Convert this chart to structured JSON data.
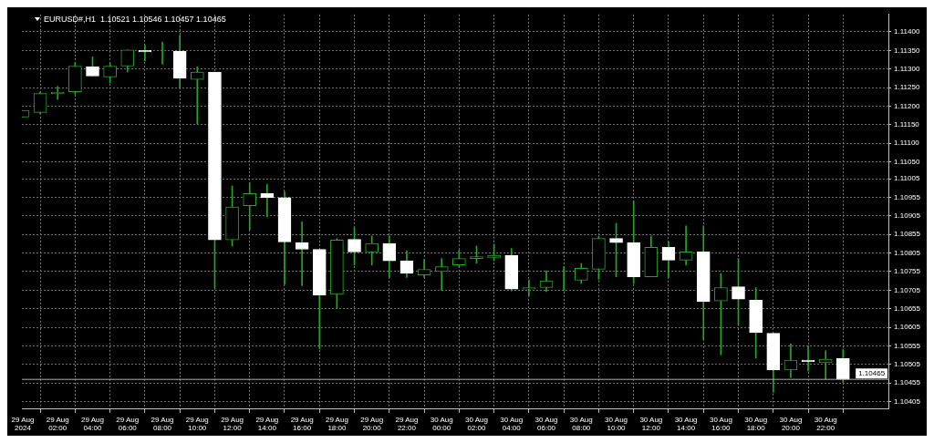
{
  "chart_data": {
    "type": "candlestick",
    "title": "EURUSD#,H1  1.10521 1.10546 1.10457 1.10465",
    "x": [
      "2024-08-29T00:00",
      "2024-08-29T01:00",
      "2024-08-29T02:00",
      "2024-08-29T03:00",
      "2024-08-29T04:00",
      "2024-08-29T05:00",
      "2024-08-29T06:00",
      "2024-08-29T07:00",
      "2024-08-29T08:00",
      "2024-08-29T09:00",
      "2024-08-29T10:00",
      "2024-08-29T11:00",
      "2024-08-29T12:00",
      "2024-08-29T13:00",
      "2024-08-29T14:00",
      "2024-08-29T15:00",
      "2024-08-29T16:00",
      "2024-08-29T17:00",
      "2024-08-29T18:00",
      "2024-08-29T19:00",
      "2024-08-29T20:00",
      "2024-08-29T21:00",
      "2024-08-29T22:00",
      "2024-08-29T23:00",
      "2024-08-30T00:00",
      "2024-08-30T01:00",
      "2024-08-30T02:00",
      "2024-08-30T03:00",
      "2024-08-30T04:00",
      "2024-08-30T05:00",
      "2024-08-30T06:00",
      "2024-08-30T07:00",
      "2024-08-30T08:00",
      "2024-08-30T09:00",
      "2024-08-30T10:00",
      "2024-08-30T11:00",
      "2024-08-30T12:00",
      "2024-08-30T13:00",
      "2024-08-30T14:00",
      "2024-08-30T15:00",
      "2024-08-30T16:00",
      "2024-08-30T17:00",
      "2024-08-30T18:00",
      "2024-08-30T19:00",
      "2024-08-30T20:00",
      "2024-08-30T21:00",
      "2024-08-30T22:00",
      "2024-08-30T23:00"
    ],
    "ohlc": [
      [
        1.11171,
        1.11189,
        1.11171,
        1.11189
      ],
      [
        1.11183,
        1.11238,
        1.1118,
        1.11234
      ],
      [
        1.11234,
        1.11254,
        1.11218,
        1.11237
      ],
      [
        1.11239,
        1.11317,
        1.11232,
        1.11308
      ],
      [
        1.11306,
        1.11333,
        1.11281,
        1.11281
      ],
      [
        1.11279,
        1.11315,
        1.11263,
        1.11308
      ],
      [
        1.11308,
        1.11351,
        1.11292,
        1.11351
      ],
      [
        1.1135,
        1.11364,
        1.11322,
        1.11346
      ],
      [
        1.11348,
        1.11373,
        1.11313,
        1.11348
      ],
      [
        1.11348,
        1.11391,
        1.11248,
        1.11275
      ],
      [
        1.11272,
        1.11306,
        1.11153,
        1.11292
      ],
      [
        1.11292,
        1.11292,
        1.1071,
        1.1084
      ],
      [
        1.1084,
        1.10985,
        1.10824,
        1.10929
      ],
      [
        1.10932,
        1.10994,
        1.10867,
        1.10965
      ],
      [
        1.10965,
        1.1099,
        1.10903,
        1.10954
      ],
      [
        1.10954,
        1.1097,
        1.10721,
        1.10835
      ],
      [
        1.10833,
        1.10889,
        1.10717,
        1.10815
      ],
      [
        1.10815,
        1.10815,
        1.10548,
        1.10692
      ],
      [
        1.10694,
        1.10844,
        1.10656,
        1.1084
      ],
      [
        1.10842,
        1.10873,
        1.10773,
        1.10808
      ],
      [
        1.10808,
        1.10851,
        1.10773,
        1.10831
      ],
      [
        1.10831,
        1.10851,
        1.10739,
        1.10784
      ],
      [
        1.10784,
        1.10811,
        1.10739,
        1.1075
      ],
      [
        1.10746,
        1.10788,
        1.10739,
        1.10761
      ],
      [
        1.10755,
        1.1079,
        1.10705,
        1.10768
      ],
      [
        1.10773,
        1.10813,
        1.10766,
        1.1079
      ],
      [
        1.1079,
        1.10824,
        1.10777,
        1.10795
      ],
      [
        1.10793,
        1.10829,
        1.10784,
        1.10799
      ],
      [
        1.10799,
        1.10817,
        1.10703,
        1.10708
      ],
      [
        1.10708,
        1.10732,
        1.1069,
        1.10712
      ],
      [
        1.10712,
        1.10757,
        1.10701,
        1.1073
      ],
      [
        1.10732,
        1.10768,
        1.10705,
        1.10732
      ],
      [
        1.10732,
        1.10777,
        1.10723,
        1.10764
      ],
      [
        1.10761,
        1.10851,
        1.10734,
        1.10844
      ],
      [
        1.10844,
        1.10885,
        1.10741,
        1.10833
      ],
      [
        1.10833,
        1.10945,
        1.10723,
        1.10741
      ],
      [
        1.10741,
        1.10851,
        1.10741,
        1.1082
      ],
      [
        1.1082,
        1.10835,
        1.10739,
        1.10786
      ],
      [
        1.10786,
        1.10878,
        1.10773,
        1.10808
      ],
      [
        1.10808,
        1.10878,
        1.10571,
        1.10674
      ],
      [
        1.10676,
        1.1075,
        1.10531,
        1.10712
      ],
      [
        1.10714,
        1.1079,
        1.10611,
        1.10681
      ],
      [
        1.10678,
        1.10712,
        1.10522,
        1.10591
      ],
      [
        1.10589,
        1.10589,
        1.1043,
        1.1049
      ],
      [
        1.1049,
        1.1056,
        1.1047,
        1.10517
      ],
      [
        1.10517,
        1.10555,
        1.10488,
        1.10513
      ],
      [
        1.1051,
        1.10542,
        1.10466,
        1.10519
      ],
      [
        1.10521,
        1.10546,
        1.10457,
        1.10465
      ]
    ],
    "color": "#22a822",
    "colors": [
      "#22a822",
      "#22a822",
      "#22a822",
      "#22a822",
      "#ffffff",
      "#22a822",
      "#22a822",
      "#ffffff",
      "#22a822",
      "#ffffff",
      "#22a822",
      "#ffffff",
      "#22a822",
      "#22a822",
      "#ffffff",
      "#ffffff",
      "#ffffff",
      "#ffffff",
      "#22a822",
      "#ffffff",
      "#22a822",
      "#ffffff",
      "#ffffff",
      "#22a822",
      "#22a822",
      "#22a822",
      "#22a822",
      "#22a822",
      "#ffffff",
      "#22a822",
      "#22a822",
      "#22a822",
      "#22a822",
      "#22a822",
      "#ffffff",
      "#ffffff",
      "#22a822",
      "#ffffff",
      "#22a822",
      "#ffffff",
      "#22a822",
      "#ffffff",
      "#ffffff",
      "#ffffff",
      "#22a822",
      "#ffffff",
      "#22a822",
      "#ffffff"
    ],
    "xlim": [
      "2024-08-28T23:57",
      "2024-08-31T01:36"
    ],
    "xticks": [
      {
        "value": "2024-08-29T00:00",
        "label": "29 Aug 2024"
      },
      {
        "value": "2024-08-29T02:00",
        "label": "29 Aug 02:00"
      },
      {
        "value": "2024-08-29T04:00",
        "label": "29 Aug 04:00"
      },
      {
        "value": "2024-08-29T06:00",
        "label": "29 Aug 06:00"
      },
      {
        "value": "2024-08-29T08:00",
        "label": "29 Aug 08:00"
      },
      {
        "value": "2024-08-29T10:00",
        "label": "29 Aug 10:00"
      },
      {
        "value": "2024-08-29T12:00",
        "label": "29 Aug 12:00"
      },
      {
        "value": "2024-08-29T14:00",
        "label": "29 Aug 14:00"
      },
      {
        "value": "2024-08-29T16:00",
        "label": "29 Aug 16:00"
      },
      {
        "value": "2024-08-29T18:00",
        "label": "29 Aug 18:00"
      },
      {
        "value": "2024-08-29T20:00",
        "label": "29 Aug 20:00"
      },
      {
        "value": "2024-08-29T22:00",
        "label": "29 Aug 22:00"
      },
      {
        "value": "2024-08-30T00:00",
        "label": "30 Aug 00:00"
      },
      {
        "value": "2024-08-30T02:00",
        "label": "30 Aug 02:00"
      },
      {
        "value": "2024-08-30T04:00",
        "label": "30 Aug 04:00"
      },
      {
        "value": "2024-08-30T06:00",
        "label": "30 Aug 06:00"
      },
      {
        "value": "2024-08-30T08:00",
        "label": "30 Aug 08:00"
      },
      {
        "value": "2024-08-30T10:00",
        "label": "30 Aug 10:00"
      },
      {
        "value": "2024-08-30T12:00",
        "label": "30 Aug 12:00"
      },
      {
        "value": "2024-08-30T14:00",
        "label": "30 Aug 14:00"
      },
      {
        "value": "2024-08-30T16:00",
        "label": "30 Aug 16:00"
      },
      {
        "value": "2024-08-30T18:00",
        "label": "30 Aug 18:00"
      },
      {
        "value": "2024-08-30T20:00",
        "label": "30 Aug 20:00"
      },
      {
        "value": "2024-08-30T22:00",
        "label": "30 Aug 22:00"
      }
    ],
    "ylim": [
      1.10385,
      1.11447
    ],
    "yticks": [
      {
        "value": 1.114,
        "label": "1.11400"
      },
      {
        "value": 1.1135,
        "label": "1.11350"
      },
      {
        "value": 1.113,
        "label": "1.11300"
      },
      {
        "value": 1.1125,
        "label": "1.11250"
      },
      {
        "value": 1.112,
        "label": "1.11200"
      },
      {
        "value": 1.1115,
        "label": "1.11150"
      },
      {
        "value": 1.111,
        "label": "1.11100"
      },
      {
        "value": 1.1105,
        "label": "1.11050"
      },
      {
        "value": 1.11005,
        "label": "1.11005"
      },
      {
        "value": 1.10955,
        "label": "1.10955"
      },
      {
        "value": 1.10905,
        "label": "1.10905"
      },
      {
        "value": 1.10855,
        "label": "1.10855"
      },
      {
        "value": 1.10805,
        "label": "1.10805"
      },
      {
        "value": 1.10755,
        "label": "1.10755"
      },
      {
        "value": 1.10705,
        "label": "1.10705"
      },
      {
        "value": 1.10655,
        "label": "1.10655"
      },
      {
        "value": 1.10605,
        "label": "1.10605"
      },
      {
        "value": 1.10555,
        "label": "1.10555"
      },
      {
        "value": 1.10505,
        "label": "1.10505"
      },
      {
        "value": 1.10455,
        "label": "1.10455"
      },
      {
        "value": 1.10405,
        "label": "1.10405"
      }
    ],
    "ref_lines": [
      {
        "axis": "y",
        "value": 1.10465,
        "label": "1.10465",
        "color": "#b0b0b0"
      }
    ],
    "grid": true
  }
}
